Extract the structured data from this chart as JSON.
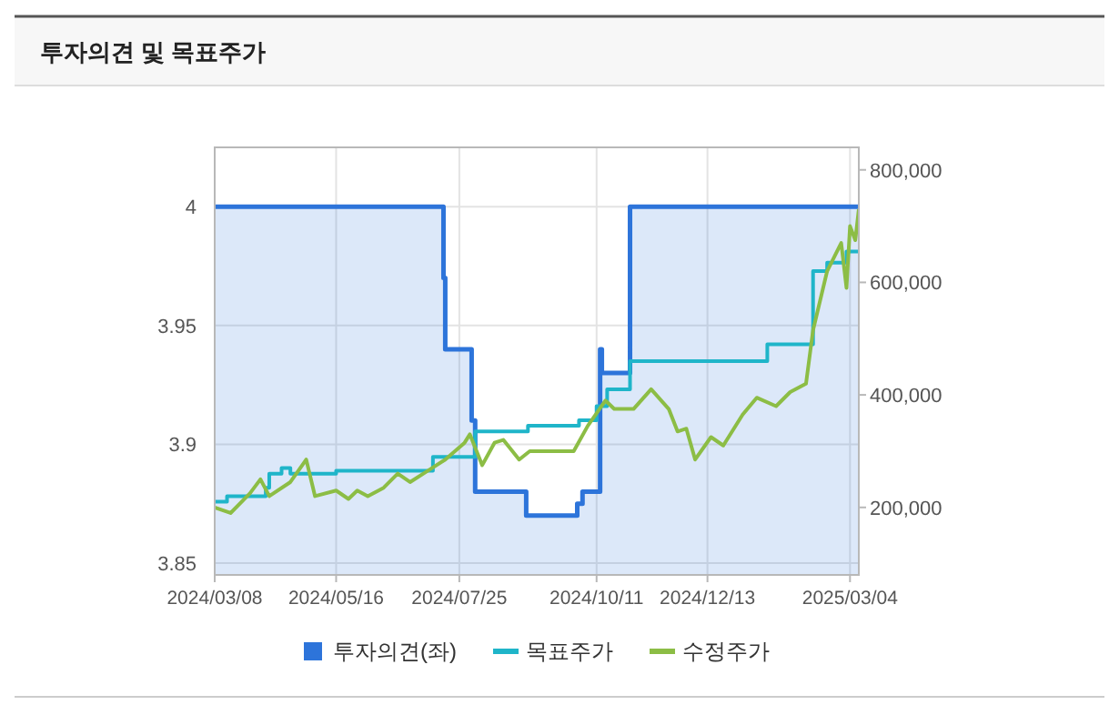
{
  "chart_data": {
    "type": "line",
    "title": "투자의견 및 목표주가",
    "series": [
      {
        "name": "투자의견(좌)",
        "type": "area",
        "color": "#2d74da",
        "x": [
          "2024-03-08",
          "2024-07-16",
          "2024-07-16",
          "2024-07-17",
          "2024-07-17",
          "2024-08-01",
          "2024-08-01",
          "2024-08-03",
          "2024-08-03",
          "2024-09-01",
          "2024-09-01",
          "2024-09-30",
          "2024-09-30",
          "2024-10-03",
          "2024-10-03",
          "2024-10-13",
          "2024-10-13",
          "2024-10-14",
          "2024-10-14",
          "2024-10-30",
          "2024-10-30",
          "2025-03-09"
        ],
        "values": [
          4,
          4,
          3.97,
          3.97,
          3.94,
          3.94,
          3.91,
          3.91,
          3.88,
          3.88,
          3.87,
          3.87,
          3.875,
          3.875,
          3.88,
          3.88,
          3.94,
          3.94,
          3.93,
          3.93,
          4,
          4
        ]
      },
      {
        "name": "목표주가",
        "type": "step",
        "axis": "y2",
        "color": "#1fb5c9",
        "x": [
          "2024-03-08",
          "2024-03-15",
          "2024-04-06",
          "2024-04-08",
          "2024-04-15",
          "2024-04-20",
          "2024-05-16",
          "2024-07-10",
          "2024-08-03",
          "2024-09-02",
          "2024-10-01",
          "2024-10-11",
          "2024-10-17",
          "2024-10-30",
          "2025-01-16",
          "2025-02-11",
          "2025-02-19",
          "2025-03-02",
          "2025-03-09"
        ],
        "values": [
          210000,
          220000,
          235000,
          260000,
          270000,
          260000,
          265000,
          290000,
          335000,
          345000,
          355000,
          380000,
          410000,
          460000,
          490000,
          620000,
          635000,
          655000,
          655000
        ]
      },
      {
        "name": "수정주가",
        "type": "line",
        "axis": "y2",
        "color": "#8cbd45",
        "x": [
          "2024-03-08",
          "2024-03-17",
          "2024-03-28",
          "2024-04-03",
          "2024-04-08",
          "2024-04-20",
          "2024-04-29",
          "2024-05-04",
          "2024-05-16",
          "2024-05-23",
          "2024-05-28",
          "2024-06-03",
          "2024-06-12",
          "2024-06-20",
          "2024-06-27",
          "2024-07-07",
          "2024-07-17",
          "2024-07-28",
          "2024-07-31",
          "2024-08-07",
          "2024-08-14",
          "2024-08-19",
          "2024-08-28",
          "2024-09-03",
          "2024-09-28",
          "2024-10-06",
          "2024-10-16",
          "2024-10-21",
          "2024-11-01",
          "2024-11-11",
          "2024-11-21",
          "2024-11-26",
          "2024-12-01",
          "2024-12-06",
          "2024-12-15",
          "2024-12-22",
          "2025-01-02",
          "2025-01-10",
          "2025-01-21",
          "2025-01-29",
          "2025-02-07",
          "2025-02-11",
          "2025-02-19",
          "2025-02-27",
          "2025-03-02",
          "2025-03-04",
          "2025-03-07",
          "2025-03-09"
        ],
        "values": [
          200000,
          190000,
          225000,
          250000,
          220000,
          245000,
          285000,
          220000,
          230000,
          215000,
          230000,
          220000,
          235000,
          260000,
          245000,
          265000,
          285000,
          315000,
          330000,
          275000,
          315000,
          320000,
          285000,
          300000,
          300000,
          345000,
          390000,
          375000,
          375000,
          410000,
          375000,
          335000,
          340000,
          285000,
          325000,
          310000,
          365000,
          395000,
          380000,
          405000,
          420000,
          515000,
          620000,
          670000,
          590000,
          700000,
          675000,
          730000
        ]
      }
    ],
    "xlim": [
      "2024-03-08",
      "2025-03-09"
    ],
    "xticks": [
      {
        "value": "2024-03-08",
        "label": "2024/03/08"
      },
      {
        "value": "2024-05-16",
        "label": "2024/05/16"
      },
      {
        "value": "2024-07-25",
        "label": "2024/07/25"
      },
      {
        "value": "2024-10-11",
        "label": "2024/10/11"
      },
      {
        "value": "2024-12-13",
        "label": "2024/12/13"
      },
      {
        "value": "2025-03-04",
        "label": "2025/03/04"
      }
    ],
    "ylim": [
      3.845,
      4.025
    ],
    "yticks": [
      3.85,
      3.9,
      3.95,
      4
    ],
    "y2lim": [
      80000,
      840000
    ],
    "y2ticks": [
      {
        "value": 200000,
        "label": "200,000"
      },
      {
        "value": 400000,
        "label": "400,000"
      },
      {
        "value": 600000,
        "label": "600,000"
      },
      {
        "value": 800000,
        "label": "800,000"
      }
    ],
    "grid": true,
    "legend": "bottom"
  }
}
